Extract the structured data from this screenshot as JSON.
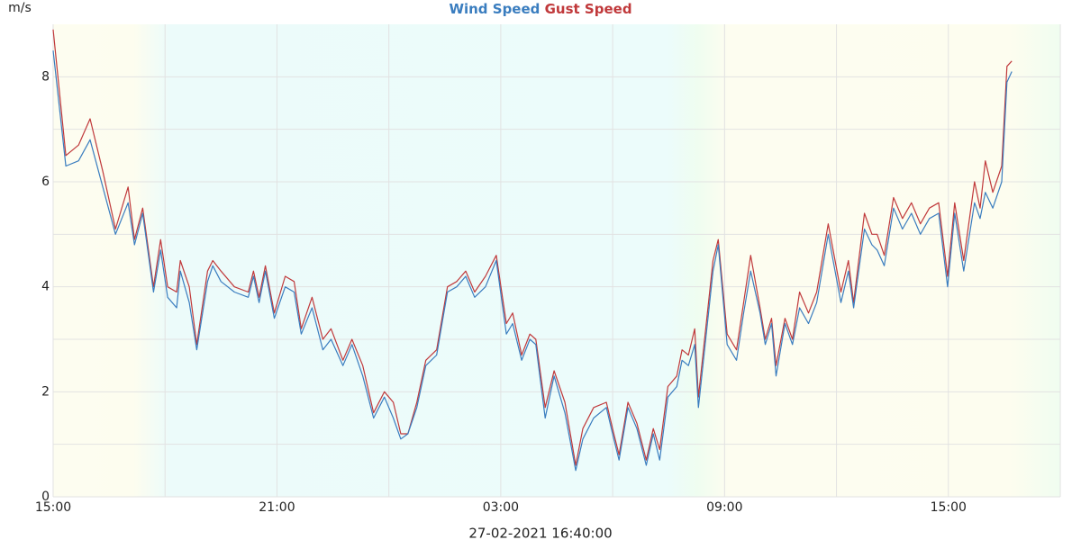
{
  "chart_data": {
    "type": "line",
    "y_label": "m/s",
    "caption": "27-02-2021 16:40:00",
    "x": [
      0,
      0.34,
      0.68,
      0.99,
      1.33,
      1.67,
      2.01,
      2.18,
      2.4,
      2.69,
      2.88,
      3.07,
      3.31,
      3.41,
      3.65,
      3.85,
      4.14,
      4.28,
      4.5,
      4.86,
      5.23,
      5.37,
      5.52,
      5.69,
      5.93,
      6.22,
      6.46,
      6.65,
      6.94,
      7.23,
      7.45,
      7.77,
      8.01,
      8.3,
      8.59,
      8.88,
      9.12,
      9.32,
      9.51,
      9.75,
      9.99,
      10.28,
      10.57,
      10.82,
      11.06,
      11.3,
      11.59,
      11.88,
      12.15,
      12.32,
      12.56,
      12.78,
      12.94,
      13.19,
      13.43,
      13.72,
      14.01,
      14.2,
      14.49,
      14.83,
      15.03,
      15.17,
      15.41,
      15.65,
      15.9,
      16.09,
      16.26,
      16.48,
      16.72,
      16.86,
      17.03,
      17.2,
      17.3,
      17.69,
      17.83,
      18.07,
      18.32,
      18.51,
      18.7,
      18.95,
      19.09,
      19.26,
      19.38,
      19.62,
      19.82,
      20.01,
      20.25,
      20.47,
      20.78,
      21.12,
      21.32,
      21.46,
      21.75,
      21.95,
      22.09,
      22.28,
      22.53,
      22.77,
      23.01,
      23.25,
      23.49,
      23.74,
      23.98,
      24.17,
      24.41,
      24.7,
      24.85,
      24.99,
      25.19,
      25.43,
      25.57,
      25.7
    ],
    "series": [
      {
        "name": "Wind Speed",
        "color": "#3a7dbf",
        "values": [
          8.5,
          6.3,
          6.4,
          6.8,
          5.9,
          5.0,
          5.6,
          4.8,
          5.4,
          3.9,
          4.7,
          3.8,
          3.6,
          4.3,
          3.7,
          2.8,
          4.1,
          4.4,
          4.1,
          3.9,
          3.8,
          4.2,
          3.7,
          4.3,
          3.4,
          4.0,
          3.9,
          3.1,
          3.6,
          2.8,
          3.0,
          2.5,
          2.9,
          2.3,
          1.5,
          1.9,
          1.5,
          1.1,
          1.2,
          1.7,
          2.5,
          2.7,
          3.9,
          4.0,
          4.2,
          3.8,
          4.0,
          4.5,
          3.1,
          3.3,
          2.6,
          3.0,
          2.9,
          1.5,
          2.3,
          1.6,
          0.5,
          1.1,
          1.5,
          1.7,
          1.1,
          0.7,
          1.7,
          1.3,
          0.6,
          1.2,
          0.7,
          1.9,
          2.1,
          2.6,
          2.5,
          2.9,
          1.7,
          4.3,
          4.8,
          2.9,
          2.6,
          3.5,
          4.3,
          3.5,
          2.9,
          3.3,
          2.3,
          3.3,
          2.9,
          3.6,
          3.3,
          3.7,
          5.0,
          3.7,
          4.3,
          3.6,
          5.1,
          4.8,
          4.7,
          4.4,
          5.5,
          5.1,
          5.4,
          5.0,
          5.3,
          5.4,
          4.0,
          5.4,
          4.3,
          5.6,
          5.3,
          5.8,
          5.5,
          6.0,
          7.9,
          8.1
        ]
      },
      {
        "name": "Gust Speed",
        "color": "#c0393b",
        "values": [
          8.9,
          6.5,
          6.7,
          7.2,
          6.2,
          5.1,
          5.9,
          4.9,
          5.5,
          4.0,
          4.9,
          4.0,
          3.9,
          4.5,
          4.0,
          2.9,
          4.3,
          4.5,
          4.3,
          4.0,
          3.9,
          4.3,
          3.8,
          4.4,
          3.5,
          4.2,
          4.1,
          3.2,
          3.8,
          3.0,
          3.2,
          2.6,
          3.0,
          2.5,
          1.6,
          2.0,
          1.8,
          1.2,
          1.2,
          1.8,
          2.6,
          2.8,
          4.0,
          4.1,
          4.3,
          3.9,
          4.2,
          4.6,
          3.3,
          3.5,
          2.7,
          3.1,
          3.0,
          1.7,
          2.4,
          1.8,
          0.6,
          1.3,
          1.7,
          1.8,
          1.2,
          0.8,
          1.8,
          1.4,
          0.7,
          1.3,
          0.9,
          2.1,
          2.3,
          2.8,
          2.7,
          3.2,
          1.9,
          4.5,
          4.9,
          3.1,
          2.8,
          3.7,
          4.6,
          3.6,
          3.0,
          3.4,
          2.5,
          3.4,
          3.0,
          3.9,
          3.5,
          3.9,
          5.2,
          3.9,
          4.5,
          3.7,
          5.4,
          5.0,
          5.0,
          4.6,
          5.7,
          5.3,
          5.6,
          5.2,
          5.5,
          5.6,
          4.2,
          5.6,
          4.5,
          6.0,
          5.5,
          6.4,
          5.8,
          6.3,
          8.2,
          8.3
        ]
      }
    ],
    "xlim": [
      0,
      27
    ],
    "xticks": [
      {
        "value": 0,
        "label": "15:00"
      },
      {
        "value": 6,
        "label": "21:00"
      },
      {
        "value": 12,
        "label": "03:00"
      },
      {
        "value": 18,
        "label": "09:00"
      },
      {
        "value": 24,
        "label": "15:00"
      }
    ],
    "x_minor_grid": [
      3,
      9,
      15,
      21,
      27
    ],
    "ylim": [
      0,
      9
    ],
    "yticks": [
      0,
      2,
      4,
      6,
      8
    ],
    "y_minor_grid": [
      1,
      3,
      5,
      7
    ],
    "grid": true
  }
}
